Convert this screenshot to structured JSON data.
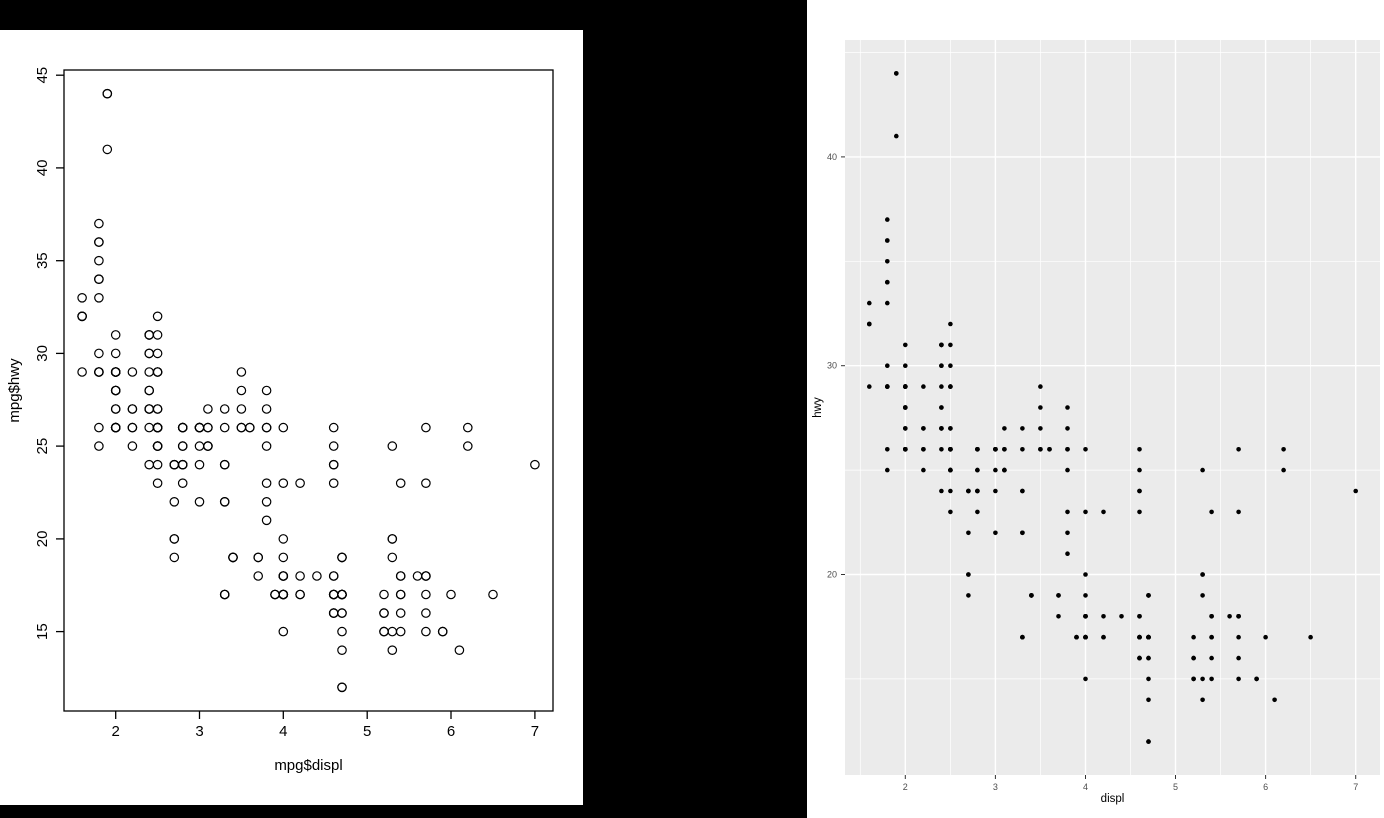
{
  "page": {
    "background_color": "#000000",
    "card_color": "#FFFFFF",
    "description_left_panel": "base R scatterplot of mpg$displ vs mpg$hwy",
    "description_right_panel": "ggplot2 theme_gray scatterplot of displ vs hwy"
  },
  "chart_data": [
    {
      "type": "scatter",
      "renderer": "base-r",
      "title": "",
      "xlabel": "mpg$displ",
      "ylabel": "mpg$hwy",
      "x_ticks": [
        2,
        3,
        4,
        5,
        6,
        7
      ],
      "y_ticks": [
        15,
        20,
        25,
        30,
        35,
        40,
        45
      ],
      "xlim": [
        1.384,
        7.216
      ],
      "ylim": [
        10.72,
        45.28
      ],
      "grid": false,
      "legend": "none",
      "marker": {
        "shape": "open-circle",
        "stroke": "#000000",
        "fill": "none"
      },
      "x": [
        1.8,
        1.8,
        2.0,
        2.0,
        2.8,
        2.8,
        3.1,
        1.8,
        1.8,
        2.0,
        2.0,
        2.8,
        2.8,
        3.1,
        3.1,
        2.8,
        3.1,
        4.2,
        5.3,
        5.3,
        5.3,
        5.7,
        6.0,
        5.7,
        5.7,
        6.2,
        6.2,
        7.0,
        5.3,
        5.3,
        5.7,
        6.5,
        2.4,
        2.4,
        3.1,
        3.5,
        3.6,
        2.4,
        3.0,
        3.3,
        3.3,
        3.3,
        3.3,
        3.3,
        3.8,
        3.8,
        3.8,
        4.0,
        3.7,
        3.7,
        3.9,
        3.9,
        4.7,
        4.7,
        4.7,
        5.2,
        5.2,
        3.9,
        4.7,
        4.7,
        4.7,
        5.2,
        5.7,
        5.9,
        4.7,
        4.7,
        4.7,
        4.7,
        4.7,
        4.7,
        5.2,
        5.2,
        5.7,
        5.9,
        4.6,
        4.6,
        5.4,
        4.0,
        4.0,
        4.0,
        4.0,
        4.6,
        4.6,
        4.2,
        4.2,
        4.6,
        4.6,
        4.6,
        5.4,
        5.4,
        3.8,
        3.8,
        4.0,
        4.6,
        4.6,
        4.6,
        4.6,
        4.6,
        5.4,
        1.6,
        1.6,
        1.6,
        1.6,
        1.6,
        1.8,
        1.8,
        1.8,
        2.0,
        2.4,
        2.4,
        2.5,
        2.5,
        2.4,
        2.4,
        3.3,
        2.0,
        2.0,
        2.0,
        2.0,
        2.7,
        2.7,
        2.7,
        3.0,
        3.7,
        4.0,
        4.7,
        4.7,
        4.7,
        5.7,
        6.1,
        4.0,
        4.2,
        4.4,
        4.6,
        5.4,
        5.4,
        5.4,
        4.0,
        4.0,
        4.6,
        4.6,
        2.4,
        2.4,
        2.5,
        2.5,
        3.5,
        3.5,
        3.0,
        3.0,
        3.5,
        3.3,
        3.3,
        4.0,
        5.6,
        3.1,
        3.8,
        3.8,
        3.8,
        5.3,
        2.5,
        2.5,
        2.5,
        2.5,
        2.5,
        2.5,
        2.2,
        2.2,
        2.5,
        2.5,
        2.5,
        2.5,
        2.5,
        2.5,
        2.7,
        2.7,
        3.4,
        3.4,
        4.0,
        4.7,
        2.2,
        2.2,
        2.4,
        2.4,
        3.0,
        3.0,
        3.5,
        2.2,
        2.2,
        2.4,
        2.4,
        3.0,
        3.0,
        3.3,
        1.8,
        1.8,
        1.8,
        1.8,
        1.8,
        4.7,
        5.7,
        2.7,
        2.7,
        3.4,
        3.4,
        4.0,
        4.0,
        4.0,
        2.0,
        2.0,
        2.0,
        2.0,
        2.8,
        1.9,
        2.0,
        2.0,
        2.0,
        2.0,
        2.5,
        2.5,
        2.8,
        2.8,
        1.9,
        1.9,
        2.0,
        2.0,
        2.5,
        2.5,
        1.8,
        1.8,
        2.0,
        2.0,
        2.8,
        2.8,
        3.6
      ],
      "y": [
        29,
        29,
        31,
        30,
        26,
        26,
        27,
        26,
        25,
        28,
        27,
        25,
        25,
        25,
        25,
        24,
        25,
        23,
        20,
        15,
        20,
        17,
        17,
        26,
        23,
        26,
        25,
        24,
        19,
        14,
        15,
        17,
        27,
        30,
        26,
        29,
        26,
        24,
        24,
        22,
        22,
        24,
        24,
        17,
        22,
        21,
        23,
        23,
        19,
        18,
        17,
        17,
        19,
        19,
        17,
        17,
        15,
        17,
        17,
        17,
        16,
        16,
        18,
        15,
        17,
        15,
        17,
        12,
        17,
        12,
        16,
        15,
        16,
        15,
        17,
        17,
        18,
        17,
        17,
        17,
        18,
        17,
        18,
        17,
        17,
        16,
        16,
        17,
        15,
        17,
        26,
        25,
        26,
        24,
        25,
        26,
        24,
        23,
        23,
        33,
        32,
        32,
        29,
        32,
        34,
        36,
        36,
        29,
        26,
        27,
        26,
        26,
        30,
        31,
        26,
        26,
        27,
        26,
        26,
        24,
        24,
        24,
        22,
        19,
        17,
        17,
        19,
        14,
        18,
        14,
        15,
        18,
        18,
        16,
        17,
        16,
        18,
        17,
        19,
        17,
        18,
        29,
        27,
        31,
        32,
        26,
        27,
        26,
        25,
        26,
        17,
        17,
        18,
        18,
        26,
        26,
        27,
        28,
        25,
        25,
        24,
        27,
        26,
        23,
        26,
        26,
        25,
        25,
        25,
        26,
        27,
        25,
        26,
        20,
        19,
        19,
        19,
        20,
        17,
        29,
        27,
        31,
        28,
        26,
        26,
        28,
        26,
        27,
        31,
        28,
        26,
        26,
        27,
        30,
        33,
        34,
        35,
        37,
        16,
        18,
        22,
        20,
        19,
        19,
        18,
        17,
        18,
        26,
        29,
        28,
        29,
        24,
        44,
        26,
        29,
        28,
        29,
        29,
        29,
        23,
        24,
        44,
        41,
        26,
        29,
        29,
        30,
        29,
        29,
        28,
        29,
        26,
        26,
        26
      ]
    },
    {
      "type": "scatter",
      "renderer": "ggplot2-theme-gray",
      "title": "",
      "xlabel": "displ",
      "ylabel": "hwy",
      "x_ticks": [
        2,
        3,
        4,
        5,
        6,
        7
      ],
      "y_ticks": [
        20,
        30,
        40
      ],
      "x_minor_ticks": [
        1.5,
        2.5,
        3.5,
        4.5,
        5.5,
        6.5
      ],
      "y_minor_ticks": [
        15,
        25,
        35,
        45
      ],
      "xlim": [
        1.33,
        7.27
      ],
      "ylim": [
        10.4,
        45.6
      ],
      "grid": true,
      "legend": "none",
      "panel_fill": "#EBEBEB",
      "grid_color": "#FFFFFF",
      "tick_color": "#333333",
      "tick_label_color": "#4D4D4D",
      "axis_title_color": "#000000",
      "marker": {
        "shape": "filled-circle",
        "fill": "#000000"
      },
      "same_data_as": 0
    }
  ]
}
